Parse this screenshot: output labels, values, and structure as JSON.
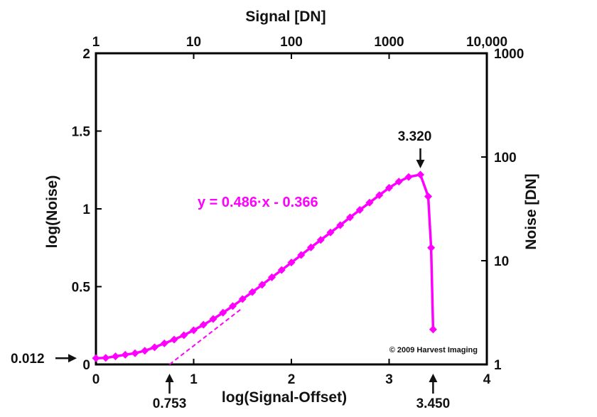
{
  "chart_data": {
    "type": "line",
    "xlabel": "log(Signal-Offset)",
    "ylabel": "log(Noise)",
    "x2label": "Signal [DN]",
    "y2label": "Noise [DN]",
    "xlim": [
      0,
      4
    ],
    "ylim": [
      0,
      2
    ],
    "x_ticks": [
      "0",
      "1",
      "2",
      "3",
      "4"
    ],
    "x_tick_values": [
      0,
      1,
      2,
      3,
      4
    ],
    "y_ticks": [
      "0",
      "0.5",
      "1",
      "1.5",
      "2"
    ],
    "y_tick_values": [
      0,
      0.5,
      1,
      1.5,
      2
    ],
    "x2_ticks": [
      "1",
      "10",
      "100",
      "1000",
      "10,000"
    ],
    "x2_tick_values": [
      0,
      1,
      2,
      3,
      4
    ],
    "y2_ticks": [
      "1",
      "10",
      "100",
      "1000"
    ],
    "y2_tick_values": [
      0,
      0.6667,
      1.3333,
      2.0
    ],
    "color": "#ff00ff",
    "series": [
      {
        "x": [
          0.0,
          0.1,
          0.2,
          0.3,
          0.4,
          0.5,
          0.6,
          0.7,
          0.8,
          0.9,
          1.0,
          1.1,
          1.2,
          1.3,
          1.4,
          1.5,
          1.6,
          1.7,
          1.8,
          1.9,
          2.0,
          2.1,
          2.2,
          2.3,
          2.4,
          2.5,
          2.6,
          2.7,
          2.8,
          2.9,
          3.0,
          3.1,
          3.2,
          3.32,
          3.4,
          3.43,
          3.45
        ],
        "y": [
          0.04,
          0.042,
          0.052,
          0.062,
          0.072,
          0.088,
          0.11,
          0.135,
          0.16,
          0.188,
          0.22,
          0.255,
          0.292,
          0.333,
          0.375,
          0.42,
          0.465,
          0.512,
          0.56,
          0.607,
          0.655,
          0.703,
          0.752,
          0.8,
          0.848,
          0.895,
          0.945,
          0.993,
          1.04,
          1.088,
          1.135,
          1.175,
          1.205,
          1.22,
          1.08,
          0.75,
          0.225
        ]
      }
    ],
    "fit_line": {
      "equation": "y = 0.486·x - 0.366",
      "slope": 0.486,
      "intercept": -0.366,
      "x_range": [
        0.753,
        1.5
      ]
    },
    "annotations": [
      {
        "label": "0.012",
        "axis": "y",
        "value": 0.04
      },
      {
        "label": "0.753",
        "axis": "x",
        "value": 0.753
      },
      {
        "label": "3.450",
        "axis": "x",
        "value": 3.45
      },
      {
        "label": "3.320",
        "axis": "x",
        "value": 3.32,
        "y": 1.22
      }
    ],
    "copyright": "© 2009 Harvest Imaging",
    "grid": false,
    "legend": "none"
  }
}
